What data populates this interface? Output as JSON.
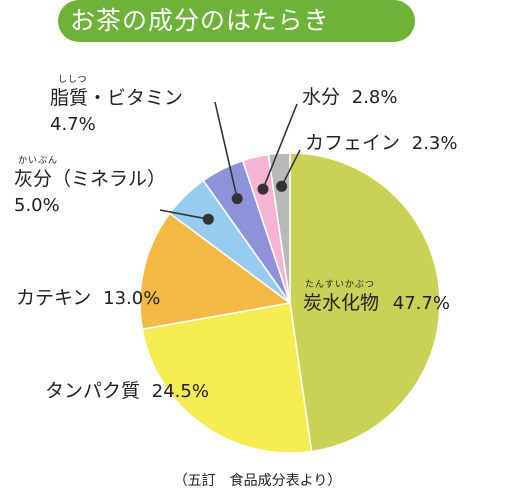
{
  "title": "お茶の成分のはたらき",
  "source": "（五訂　食品成分表より）",
  "colors": {
    "banner": "#6fb23a",
    "title_text": "#ffffff"
  },
  "chart_data": {
    "type": "pie",
    "title": "お茶の成分のはたらき",
    "slices": [
      {
        "name": "炭水化物",
        "ruby": "たんすいかぶつ",
        "pct": "47.7%",
        "value": 47.7,
        "color": "#c9d257"
      },
      {
        "name": "タンパク質",
        "pct": "24.5%",
        "value": 24.5,
        "color": "#f5ec52"
      },
      {
        "name": "カテキン",
        "pct": "13.0%",
        "value": 13.0,
        "color": "#f4b944"
      },
      {
        "name": "灰分（ミネラル）",
        "ruby": "かいぶん",
        "pct": "5.0%",
        "value": 5.0,
        "color": "#97cbf0"
      },
      {
        "name": "脂質・ビタミン",
        "ruby": "ししつ",
        "pct": "4.7%",
        "value": 4.7,
        "color": "#8e93d9"
      },
      {
        "name": "水分",
        "pct": "2.8%",
        "value": 2.8,
        "color": "#f3b5d3"
      },
      {
        "name": "カフェイン",
        "pct": "2.3%",
        "value": 2.3,
        "color": "#b9b9b9"
      }
    ]
  }
}
